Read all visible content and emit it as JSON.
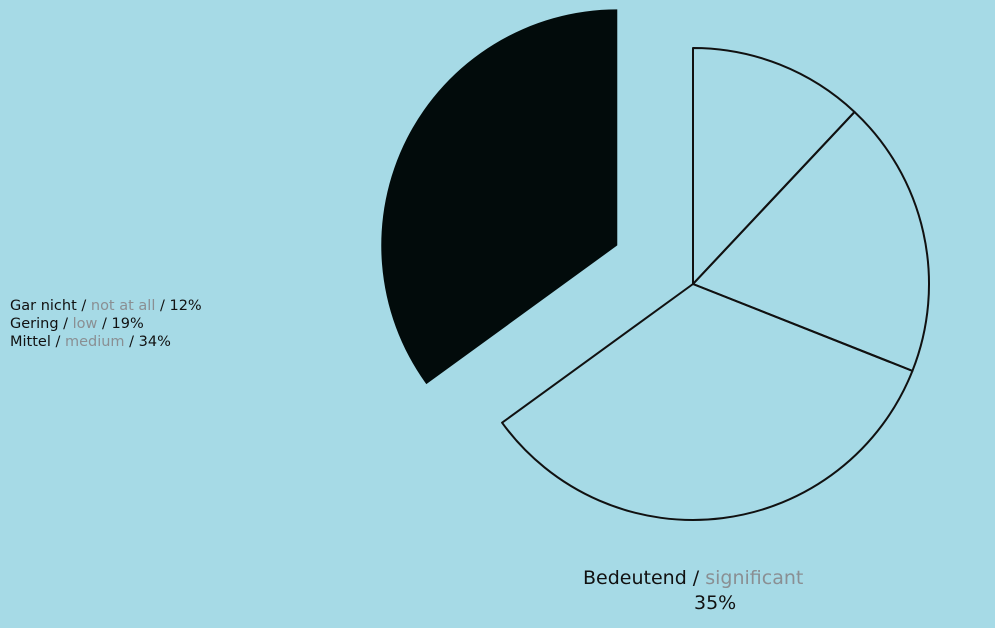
{
  "chart_data": {
    "type": "pie",
    "slices": [
      {
        "label_de": "Gar nicht",
        "label_en": "not at all",
        "value": 12,
        "value_label": "12%",
        "exploded": false
      },
      {
        "label_de": "Gering ",
        "label_en": "low",
        "value": 19,
        "value_label": "19%",
        "exploded": false
      },
      {
        "label_de": "Mittel",
        "label_en": "medium",
        "value": 34,
        "value_label": "34%",
        "exploded": false
      },
      {
        "label_de": "Bedeutend",
        "label_en": "significant",
        "value": 35,
        "value_label": "35%",
        "exploded": true
      }
    ],
    "colors": {
      "background": "#a6dae6",
      "highlight_fill": "#020b0b",
      "outline": "#111111",
      "secondary_text": "#8a8f93"
    },
    "legend_placement": "left"
  },
  "legend": {
    "rows": [
      {
        "de": "Gar nicht",
        "sep1": " / ",
        "en": "not at all",
        "sep2": " / ",
        "pct": "12%"
      },
      {
        "de": "Gering ",
        "sep1": " / ",
        "en": "low",
        "sep2": " / ",
        "pct": "19%"
      },
      {
        "de": "Mittel",
        "sep1": " / ",
        "en": "medium",
        "sep2": " / ",
        "pct": "34%"
      }
    ]
  },
  "callout": {
    "de": "Bedeutend",
    "sep": " / ",
    "en": "significant",
    "pct": "35%"
  }
}
